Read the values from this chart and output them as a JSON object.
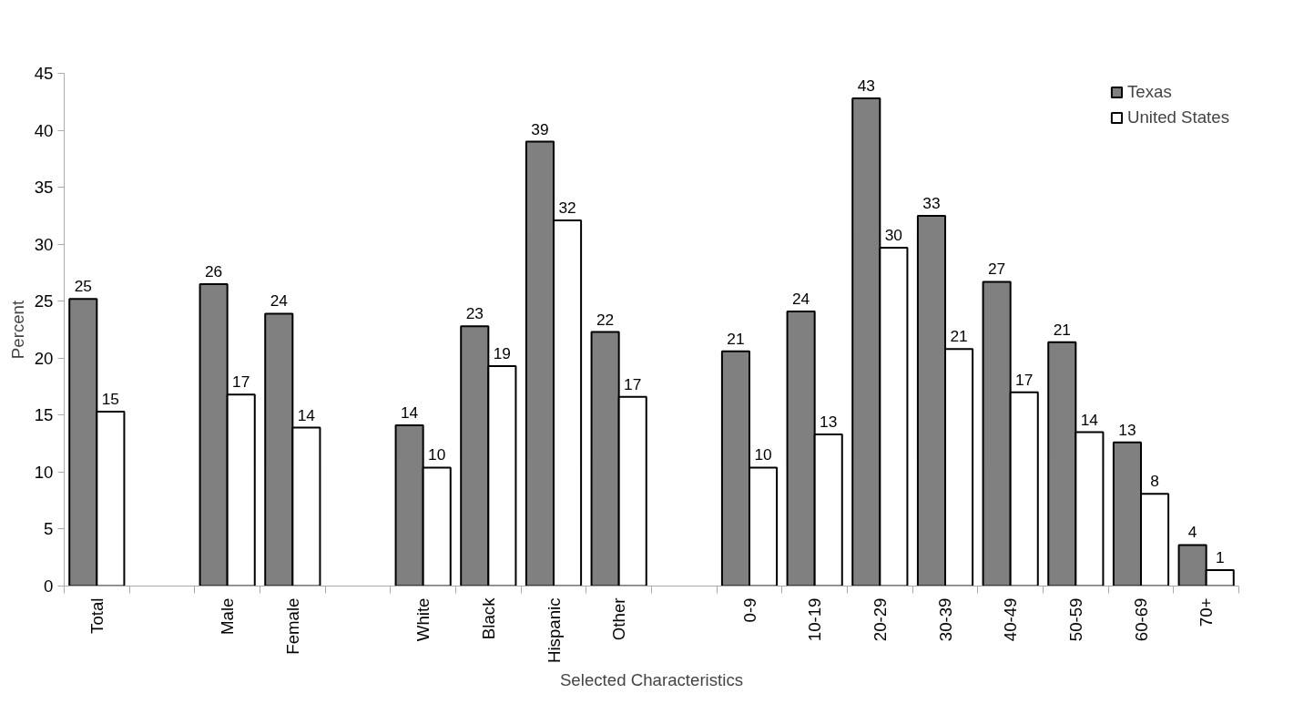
{
  "chart_data": {
    "type": "bar",
    "xlabel": "Selected Characteristics",
    "ylabel": "Percent",
    "categories": [
      "Total",
      null,
      "Male",
      "Female",
      null,
      "White",
      "Black",
      "Hispanic",
      "Other",
      null,
      "0-9",
      "10-19",
      "20-29",
      "30-39",
      "40-49",
      "50-59",
      "60-69",
      "70+"
    ],
    "series": [
      {
        "name": "Texas",
        "color": "#808080",
        "values": [
          25.2,
          null,
          26.5,
          23.9,
          null,
          14.1,
          22.8,
          39.0,
          22.3,
          null,
          20.6,
          24.1,
          42.8,
          32.5,
          26.7,
          21.4,
          12.6,
          3.6
        ],
        "value_labels": [
          "25",
          null,
          "26",
          "24",
          null,
          "14",
          "23",
          "39",
          "22",
          null,
          "21",
          "24",
          "43",
          "33",
          "27",
          "21",
          "13",
          "4"
        ]
      },
      {
        "name": "United States",
        "color": "#ffffff",
        "values": [
          15.3,
          null,
          16.8,
          13.9,
          null,
          10.4,
          19.3,
          32.1,
          16.6,
          null,
          10.4,
          13.3,
          29.7,
          20.8,
          17.0,
          13.5,
          8.1,
          1.4
        ],
        "value_labels": [
          "15",
          null,
          "17",
          "14",
          null,
          "10",
          "19",
          "32",
          "17",
          null,
          "10",
          "13",
          "30",
          "21",
          "17",
          "14",
          "8",
          "1"
        ]
      }
    ],
    "ylim": [
      0,
      45
    ],
    "yticks": [
      0,
      5,
      10,
      15,
      20,
      25,
      30,
      35,
      40,
      45
    ],
    "grid": false,
    "legend": "top right"
  }
}
